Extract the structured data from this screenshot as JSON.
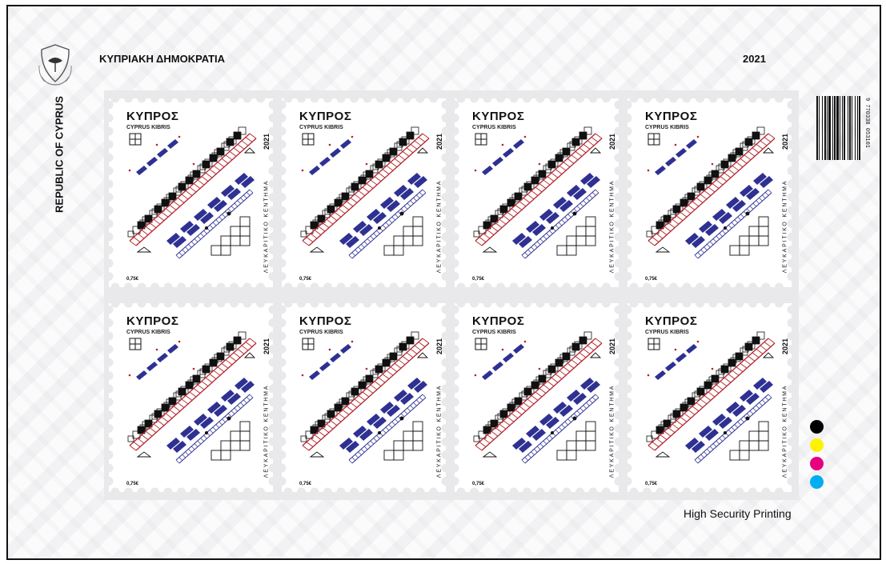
{
  "sheet": {
    "header_left": "ΚΥΠΡΙΑΚΗ ΔΗΜΟΚΡΑΤΙΑ",
    "header_year": "2021",
    "side_label": "REPUBLIC OF CYPRUS",
    "barcode_digits": "9 770338 053101",
    "footer": "High Security Printing",
    "color_marks": [
      "#000000",
      "#fff200",
      "#e6007e",
      "#00aeef"
    ]
  },
  "stamps": [
    {
      "title": "ΚΥΠΡΟΣ",
      "subtitle": "CYPRUS KIBRIS",
      "year": "2021",
      "craft": "ΛΕΥΚΑΡΙΤΙΚΟ ΚΕΝΤΗΜΑ",
      "value": "0,75€"
    },
    {
      "title": "ΚΥΠΡΟΣ",
      "subtitle": "CYPRUS KIBRIS",
      "year": "2021",
      "craft": "ΛΕΥΚΑΡΙΤΙΚΟ ΚΕΝΤΗΜΑ",
      "value": "0,75€"
    },
    {
      "title": "ΚΥΠΡΟΣ",
      "subtitle": "CYPRUS KIBRIS",
      "year": "2021",
      "craft": "ΛΕΥΚΑΡΙΤΙΚΟ ΚΕΝΤΗΜΑ",
      "value": "0,75€"
    },
    {
      "title": "ΚΥΠΡΟΣ",
      "subtitle": "CYPRUS KIBRIS",
      "year": "2021",
      "craft": "ΛΕΥΚΑΡΙΤΙΚΟ ΚΕΝΤΗΜΑ",
      "value": "0,75€"
    },
    {
      "title": "ΚΥΠΡΟΣ",
      "subtitle": "CYPRUS KIBRIS",
      "year": "2021",
      "craft": "ΛΕΥΚΑΡΙΤΙΚΟ ΚΕΝΤΗΜΑ",
      "value": "0,75€"
    },
    {
      "title": "ΚΥΠΡΟΣ",
      "subtitle": "CYPRUS KIBRIS",
      "year": "2021",
      "craft": "ΛΕΥΚΑΡΙΤΙΚΟ ΚΕΝΤΗΜΑ",
      "value": "0,75€"
    },
    {
      "title": "ΚΥΠΡΟΣ",
      "subtitle": "CYPRUS KIBRIS",
      "year": "2021",
      "craft": "ΛΕΥΚΑΡΙΤΙΚΟ ΚΕΝΤΗΜΑ",
      "value": "0,75€"
    },
    {
      "title": "ΚΥΠΡΟΣ",
      "subtitle": "CYPRUS KIBRIS",
      "year": "2021",
      "craft": "ΛΕΥΚΑΡΙΤΙΚΟ ΚΕΝΤΗΜΑ",
      "value": "0,75€"
    }
  ],
  "palette": {
    "embroidery_black": "#111111",
    "red_stripe": "#b5242c",
    "blue_motif": "#2e3192",
    "perforation_gray": "#bdbdc4"
  }
}
